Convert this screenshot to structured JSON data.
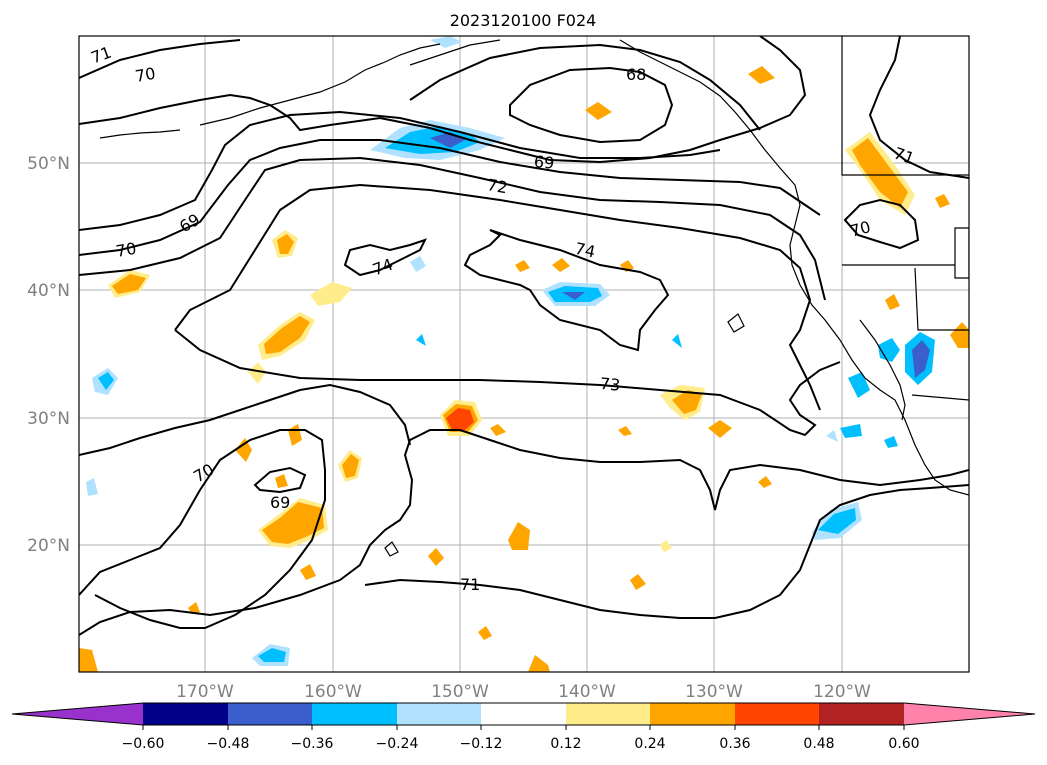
{
  "title": "2023120100 F024",
  "latitude_labels": [
    "50°N",
    "40°N",
    "30°N",
    "20°N"
  ],
  "longitude_labels": [
    "170°W",
    "160°W",
    "150°W",
    "140°W",
    "130°W",
    "120°W"
  ],
  "contour_labels": [
    "71",
    "70",
    "69",
    "70",
    "72",
    "74",
    "74",
    "73",
    "70",
    "69",
    "71",
    "68",
    "69",
    "71",
    "70"
  ],
  "colorbar": {
    "ticks": [
      "−0.60",
      "−0.48",
      "−0.36",
      "−0.24",
      "−0.12",
      "0.12",
      "0.24",
      "0.36",
      "0.48",
      "0.60"
    ],
    "colors": {
      "under": "#9932cc",
      "c1": "#00008b",
      "c2": "#3a5fcd",
      "c3": "#00bfff",
      "c4": "#b0e2ff",
      "c5": "#ffffff",
      "c6": "#ffec8b",
      "c7": "#ffa500",
      "c8": "#ff4500",
      "c9": "#b22222",
      "over": "#ff82ab"
    }
  }
}
